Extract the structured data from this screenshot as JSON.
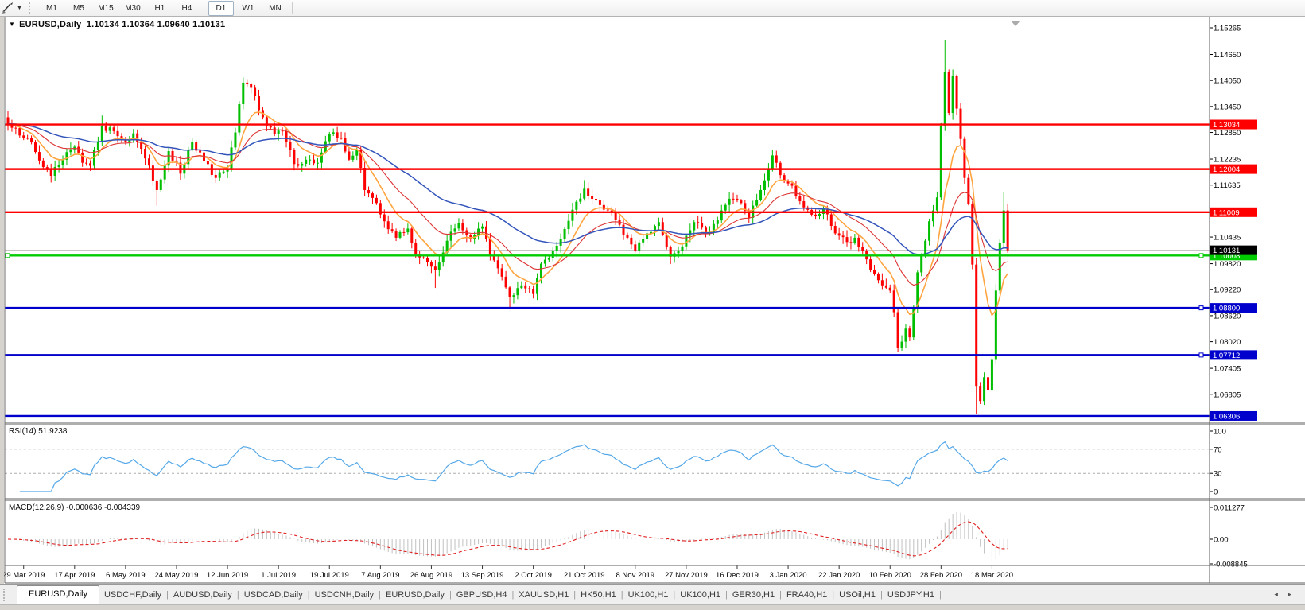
{
  "toolbar": {
    "drawing_tool_icon": "crosshair-pen-tool",
    "timeframes": [
      "M1",
      "M5",
      "M15",
      "M30",
      "H1",
      "H4",
      "D1",
      "W1",
      "MN"
    ],
    "active_timeframe": "D1"
  },
  "chart": {
    "title": {
      "symbol": "EURUSD,Daily",
      "ohlc": "1.10134 1.10364 1.09640 1.10131"
    },
    "colors": {
      "up": "#00BE00",
      "down": "#FF0000",
      "wick_up": "#00A000",
      "wick_down": "#E00000",
      "ma_fast": "#FFA540",
      "ma_mid": "#DD3333",
      "ma_slow": "#3355BB",
      "current_line": "#BDBDBD",
      "current_label_bg": "#000000",
      "border": "#5E5E5E",
      "axis_text": "#000000"
    },
    "price_axis": {
      "ticks": [
        "1.15265",
        "1.14650",
        "1.14050",
        "1.13450",
        "1.12850",
        "1.12235",
        "1.11635",
        "1.10435",
        "1.09820",
        "1.09220",
        "1.08620",
        "1.08020",
        "1.07405",
        "1.06805"
      ],
      "levels": [
        {
          "text": "1.13034",
          "price": 1.13034,
          "color": "#FF0000",
          "handles": false
        },
        {
          "text": "1.12004",
          "price": 1.12004,
          "color": "#FF0000",
          "handles": false
        },
        {
          "text": "1.11009",
          "price": 1.11009,
          "color": "#FF0000",
          "handles": false
        },
        {
          "text": "1.10008",
          "price": 1.10008,
          "color": "#00CC00",
          "handles": true,
          "left_handle": true
        },
        {
          "text": "1.08800",
          "price": 1.088,
          "color": "#0000CC",
          "handles": true
        },
        {
          "text": "1.07712",
          "price": 1.07712,
          "color": "#0000CC",
          "handles": true
        },
        {
          "text": "1.06306",
          "price": 1.06306,
          "color": "#0000CC",
          "handles": false
        }
      ],
      "current": {
        "text": "1.10131",
        "price": 1.10131
      }
    },
    "date_axis": [
      "29 Mar 2019",
      "17 Apr 2019",
      "6 May 2019",
      "24 May 2019",
      "12 Jun 2019",
      "1 Jul 2019",
      "19 Jul 2019",
      "7 Aug 2019",
      "26 Aug 2019",
      "13 Sep 2019",
      "2 Oct 2019",
      "21 Oct 2019",
      "8 Nov 2019",
      "27 Nov 2019",
      "16 Dec 2019",
      "3 Jan 2020",
      "22 Jan 2020",
      "10 Feb 2020",
      "28 Feb 2020",
      "18 Mar 2020"
    ],
    "candles": {
      "count": 256,
      "first_label_index": 4,
      "label_step": 13,
      "waypoints": [
        [
          0,
          1.1305
        ],
        [
          3,
          1.1278
        ],
        [
          6,
          1.1262
        ],
        [
          9,
          1.1205
        ],
        [
          11,
          1.1185
        ],
        [
          14,
          1.1222
        ],
        [
          17,
          1.1252
        ],
        [
          19,
          1.1215
        ],
        [
          21,
          1.1208
        ],
        [
          24,
          1.13
        ],
        [
          27,
          1.1288
        ],
        [
          30,
          1.1262
        ],
        [
          32,
          1.1283
        ],
        [
          35,
          1.1225
        ],
        [
          38,
          1.1152
        ],
        [
          41,
          1.1242
        ],
        [
          44,
          1.119
        ],
        [
          47,
          1.1262
        ],
        [
          50,
          1.1218
        ],
        [
          53,
          1.118
        ],
        [
          56,
          1.12
        ],
        [
          58,
          1.1285
        ],
        [
          60,
          1.14
        ],
        [
          62,
          1.1388
        ],
        [
          65,
          1.132
        ],
        [
          68,
          1.1282
        ],
        [
          70,
          1.1288
        ],
        [
          73,
          1.1212
        ],
        [
          76,
          1.1222
        ],
        [
          79,
          1.1215
        ],
        [
          82,
          1.1282
        ],
        [
          85,
          1.1272
        ],
        [
          87,
          1.1222
        ],
        [
          89,
          1.1245
        ],
        [
          91,
          1.1152
        ],
        [
          94,
          1.1122
        ],
        [
          96,
          1.108
        ],
        [
          99,
          1.1042
        ],
        [
          102,
          1.1063
        ],
        [
          104,
          1.1003
        ],
        [
          107,
          1.0985
        ],
        [
          109,
          1.0968
        ],
        [
          112,
          1.1035
        ],
        [
          115,
          1.1075
        ],
        [
          118,
          1.104
        ],
        [
          121,
          1.1068
        ],
        [
          123,
          1.1002
        ],
        [
          126,
          1.0952
        ],
        [
          128,
          1.0905
        ],
        [
          131,
          1.0932
        ],
        [
          134,
          1.0912
        ],
        [
          136,
          1.0982
        ],
        [
          139,
          1.1012
        ],
        [
          142,
          1.1062
        ],
        [
          145,
          1.1125
        ],
        [
          147,
          1.1155
        ],
        [
          150,
          1.1128
        ],
        [
          153,
          1.1105
        ],
        [
          156,
          1.1072
        ],
        [
          158,
          1.1042
        ],
        [
          160,
          1.1012
        ],
        [
          163,
          1.1052
        ],
        [
          166,
          1.1078
        ],
        [
          169,
          1.0998
        ],
        [
          172,
          1.1022
        ],
        [
          175,
          1.1078
        ],
        [
          178,
          1.1052
        ],
        [
          181,
          1.1082
        ],
        [
          184,
          1.1132
        ],
        [
          187,
          1.1122
        ],
        [
          189,
          1.1088
        ],
        [
          192,
          1.1152
        ],
        [
          195,
          1.1232
        ],
        [
          198,
          1.1172
        ],
        [
          200,
          1.1162
        ],
        [
          203,
          1.1112
        ],
        [
          206,
          1.1092
        ],
        [
          208,
          1.1108
        ],
        [
          211,
          1.1052
        ],
        [
          214,
          1.1032
        ],
        [
          216,
          1.1042
        ],
        [
          219,
          1.0992
        ],
        [
          221,
          1.0958
        ],
        [
          223,
          1.0932
        ],
        [
          225,
          1.092
        ],
        [
          226,
          1.087
        ],
        [
          227,
          1.0788
        ],
        [
          228,
          1.0802
        ],
        [
          229,
          1.0832
        ],
        [
          230,
          1.0812
        ],
        [
          231,
          1.088
        ],
        [
          232,
          1.0962
        ],
        [
          233,
          1.1
        ],
        [
          234,
          1.1035
        ],
        [
          235,
          1.108
        ],
        [
          236,
          1.1105
        ],
        [
          237,
          1.1135
        ],
        [
          238,
          1.13
        ],
        [
          239,
          1.1425
        ],
        [
          240,
          1.133
        ],
        [
          241,
          1.1415
        ],
        [
          242,
          1.134
        ],
        [
          243,
          1.127
        ],
        [
          244,
          1.118
        ],
        [
          245,
          1.112
        ],
        [
          246,
          1.098
        ],
        [
          247,
          1.07
        ],
        [
          248,
          1.0665
        ],
        [
          249,
          1.072
        ],
        [
          250,
          1.069
        ],
        [
          251,
          1.076
        ],
        [
          252,
          1.092
        ],
        [
          253,
          1.103
        ],
        [
          254,
          1.1105
        ],
        [
          255,
          1.10131
        ]
      ],
      "wick_overrides": {
        "24": {
          "h": 1.1324
        },
        "38": {
          "l": 1.1116
        },
        "60": {
          "h": 1.1412
        },
        "89": {
          "h": 1.125
        },
        "109": {
          "l": 1.0926
        },
        "128": {
          "l": 1.088
        },
        "147": {
          "h": 1.1175
        },
        "169": {
          "l": 1.0981
        },
        "195": {
          "h": 1.1244
        },
        "227": {
          "l": 1.0778
        },
        "239": {
          "h": 1.1499
        },
        "247": {
          "l": 1.0636
        },
        "254": {
          "h": 1.1148
        }
      }
    },
    "moving_averages": [
      {
        "name": "ma-fast",
        "period": 9,
        "color": "#FFA540",
        "width": 1.6
      },
      {
        "name": "ma-mid",
        "period": 21,
        "color": "#DD3333",
        "width": 1.1
      },
      {
        "name": "ma-slow",
        "period": 50,
        "color": "#3355BB",
        "width": 1.5
      }
    ],
    "shift_marker_color": "#ABABAB"
  },
  "rsi": {
    "label": "RSI(14)",
    "value": "51.9238",
    "period": 14,
    "color": "#55A8E8",
    "ticks": [
      {
        "v": 100,
        "t": "100"
      },
      {
        "v": 70,
        "t": "70"
      },
      {
        "v": 30,
        "t": "30"
      },
      {
        "v": 0,
        "t": "0"
      }
    ],
    "guides": [
      70,
      30
    ]
  },
  "macd": {
    "label": "MACD(12,26,9)",
    "values": "-0.000636 -0.004339",
    "fast": 12,
    "slow": 26,
    "signal": 9,
    "bar_color": "#C0C0C0",
    "signal_color": "#E02020",
    "ticks": [
      {
        "v": 0.011277,
        "t": "0.011277"
      },
      {
        "v": 0,
        "t": "0.00"
      },
      {
        "v": -0.008845,
        "t": "-0.008845"
      }
    ]
  },
  "tabs": {
    "items": [
      "EURUSD,Daily",
      "USDCHF,Daily",
      "AUDUSD,Daily",
      "USDCAD,Daily",
      "USDCNH,Daily",
      "EURUSD,Daily",
      "GBPUSD,H4",
      "XAUUSD,H1",
      "HK50,H1",
      "UK100,H1",
      "UK100,H1",
      "GER30,H1",
      "FRA40,H1",
      "USOil,H1",
      "USDJPY,H1"
    ],
    "active_index": 0,
    "scroll_left": "◂",
    "scroll_right": "▸"
  }
}
